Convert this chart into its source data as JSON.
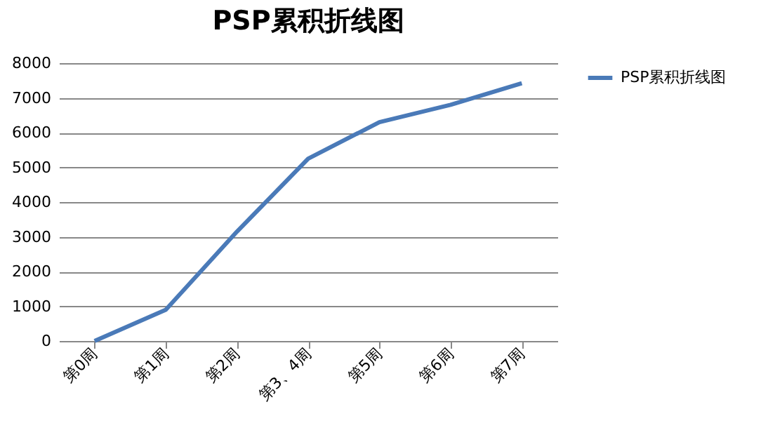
{
  "chart_data": {
    "type": "line",
    "title": "PSP累积折线图",
    "categories": [
      "第0周",
      "第1周",
      "第2周",
      "第3、4周",
      "第5周",
      "第6周",
      "第7周"
    ],
    "series": [
      {
        "name": "PSP累积折线图",
        "color": "#4a7ab8",
        "values": [
          0,
          900,
          3150,
          5250,
          6300,
          6800,
          7420
        ]
      }
    ],
    "ylim": [
      0,
      8000
    ],
    "yticks": [
      0,
      1000,
      2000,
      3000,
      4000,
      5000,
      6000,
      7000,
      8000
    ],
    "grid": "y",
    "legend": "right",
    "marker": "none",
    "line_style": "solid"
  }
}
